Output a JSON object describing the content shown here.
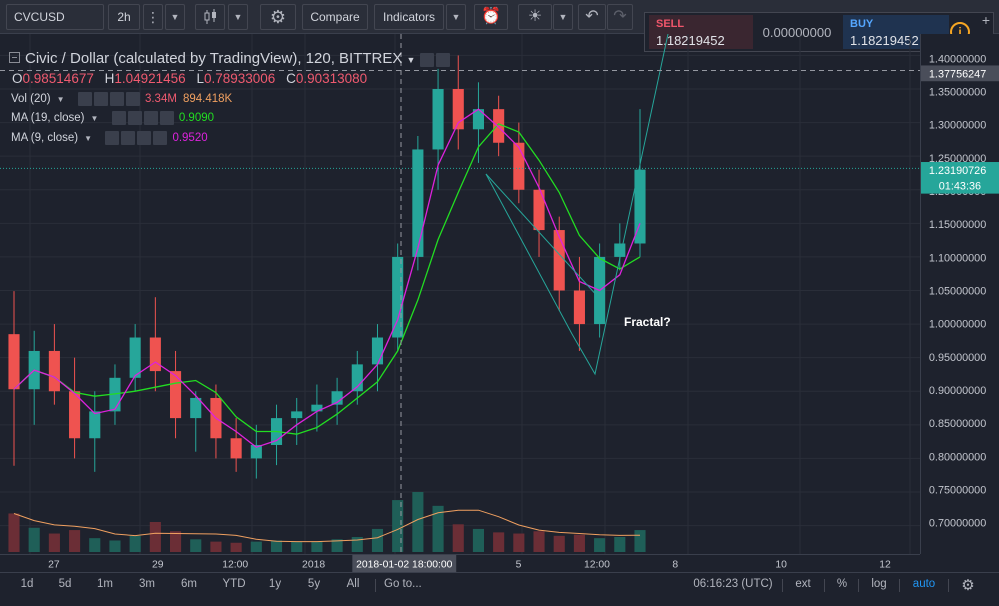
{
  "toolbar": {
    "symbol": "CVCUSD",
    "interval": "2h",
    "compare_label": "Compare",
    "indicators_label": "Indicators"
  },
  "trade_panel": {
    "sell_label": "SELL",
    "sell_price": "1.18219452",
    "spread": "0.00000000",
    "buy_label": "BUY",
    "buy_price": "1.18219452"
  },
  "legend": {
    "title": "Civic / Dollar (calculated by TradingView), 120, BITTREX",
    "ohlc": [
      {
        "key": "O",
        "value": "0.98514677"
      },
      {
        "key": "H",
        "value": "1.04921456"
      },
      {
        "key": "L",
        "value": "0.78933006"
      },
      {
        "key": "C",
        "value": "0.90313080"
      }
    ],
    "volume": {
      "name": "Vol (20)",
      "v1": "3.34M",
      "v2": "894.418K"
    },
    "ma19": {
      "name": "MA (19, close)",
      "value": "0.9090"
    },
    "ma9": {
      "name": "MA (9, close)",
      "value": "0.9520"
    }
  },
  "annotation": "Fractal?",
  "price_axis": {
    "labels": [
      "1.40000000",
      "1.35000000",
      "1.30000000",
      "1.25000000",
      "1.20000000",
      "1.15000000",
      "1.10000000",
      "1.05000000",
      "1.00000000",
      "0.95000000",
      "0.90000000",
      "0.85000000",
      "0.80000000",
      "0.75000000",
      "0.70000000"
    ],
    "crosshair_price": "1.37756247",
    "last_price": "1.23190726",
    "countdown": "01:43:36"
  },
  "time_axis": {
    "labels": [
      "27",
      "29",
      "12:00",
      "2018",
      "5",
      "12:00",
      "8",
      "10",
      "12"
    ],
    "crosshair_time": "2018-01-02 18:00:00"
  },
  "bottom": {
    "ranges": [
      "1d",
      "5d",
      "1m",
      "3m",
      "6m",
      "YTD",
      "1y",
      "5y",
      "All"
    ],
    "goto": "Go to...",
    "clock": "06:16:23 (UTC)",
    "ext": "ext",
    "pct": "%",
    "log": "log",
    "auto": "auto"
  },
  "colors": {
    "up": "#26a69a",
    "down": "#ef5350",
    "ma19": "#22dd22",
    "ma9": "#dd22dd",
    "volume_ma": "#f0a060",
    "drawing": "#26a69a",
    "sell": "#f0566b",
    "buy": "#55a7ff"
  },
  "icons": [
    "chevron-down-icon",
    "candles-icon",
    "gear-icon",
    "alarm-clock-icon",
    "lightbulb-icon",
    "undo-icon",
    "redo-icon",
    "info-icon",
    "plus-icon",
    "settings-icon"
  ],
  "chart_data": {
    "type": "candlestick",
    "series": [
      {
        "name": "CVCUSD",
        "ohlc": [
          [
            0.985,
            1.049,
            0.789,
            0.903
          ],
          [
            0.903,
            0.99,
            0.85,
            0.96
          ],
          [
            0.96,
            1.0,
            0.88,
            0.9
          ],
          [
            0.9,
            0.95,
            0.8,
            0.83
          ],
          [
            0.83,
            0.9,
            0.78,
            0.87
          ],
          [
            0.87,
            0.94,
            0.85,
            0.92
          ],
          [
            0.92,
            1.0,
            0.9,
            0.98
          ],
          [
            0.98,
            1.04,
            0.9,
            0.93
          ],
          [
            0.93,
            0.96,
            0.83,
            0.86
          ],
          [
            0.86,
            0.9,
            0.81,
            0.89
          ],
          [
            0.89,
            0.91,
            0.8,
            0.83
          ],
          [
            0.83,
            0.86,
            0.78,
            0.8
          ],
          [
            0.8,
            0.85,
            0.77,
            0.82
          ],
          [
            0.82,
            0.88,
            0.79,
            0.86
          ],
          [
            0.86,
            0.89,
            0.82,
            0.87
          ],
          [
            0.87,
            0.91,
            0.84,
            0.88
          ],
          [
            0.88,
            0.92,
            0.85,
            0.9
          ],
          [
            0.9,
            0.96,
            0.88,
            0.94
          ],
          [
            0.94,
            1.0,
            0.9,
            0.98
          ],
          [
            0.98,
            1.12,
            0.96,
            1.1
          ],
          [
            1.1,
            1.28,
            1.08,
            1.26
          ],
          [
            1.26,
            1.38,
            1.2,
            1.35
          ],
          [
            1.35,
            1.4,
            1.26,
            1.29
          ],
          [
            1.29,
            1.36,
            1.24,
            1.32
          ],
          [
            1.32,
            1.34,
            1.25,
            1.27
          ],
          [
            1.27,
            1.3,
            1.18,
            1.2
          ],
          [
            1.2,
            1.23,
            1.1,
            1.14
          ],
          [
            1.14,
            1.16,
            1.02,
            1.05
          ],
          [
            1.05,
            1.1,
            0.96,
            1.0
          ],
          [
            1.0,
            1.12,
            0.98,
            1.1
          ],
          [
            1.1,
            1.15,
            1.08,
            1.12
          ],
          [
            1.12,
            1.32,
            1.1,
            1.23
          ]
        ]
      }
    ],
    "volume": [
      3.34,
      2.1,
      1.6,
      1.9,
      1.2,
      1.0,
      1.4,
      2.6,
      1.8,
      1.1,
      0.9,
      0.8,
      0.9,
      1.0,
      0.9,
      0.9,
      1.1,
      1.3,
      2.0,
      4.5,
      5.2,
      4.0,
      2.4,
      2.0,
      1.7,
      1.6,
      1.8,
      1.4,
      1.5,
      1.2,
      1.3,
      1.9
    ],
    "ylim": [
      0.68,
      1.42
    ],
    "grid": true,
    "overlays": [
      "MA (19, close)",
      "MA (9, close)"
    ]
  }
}
